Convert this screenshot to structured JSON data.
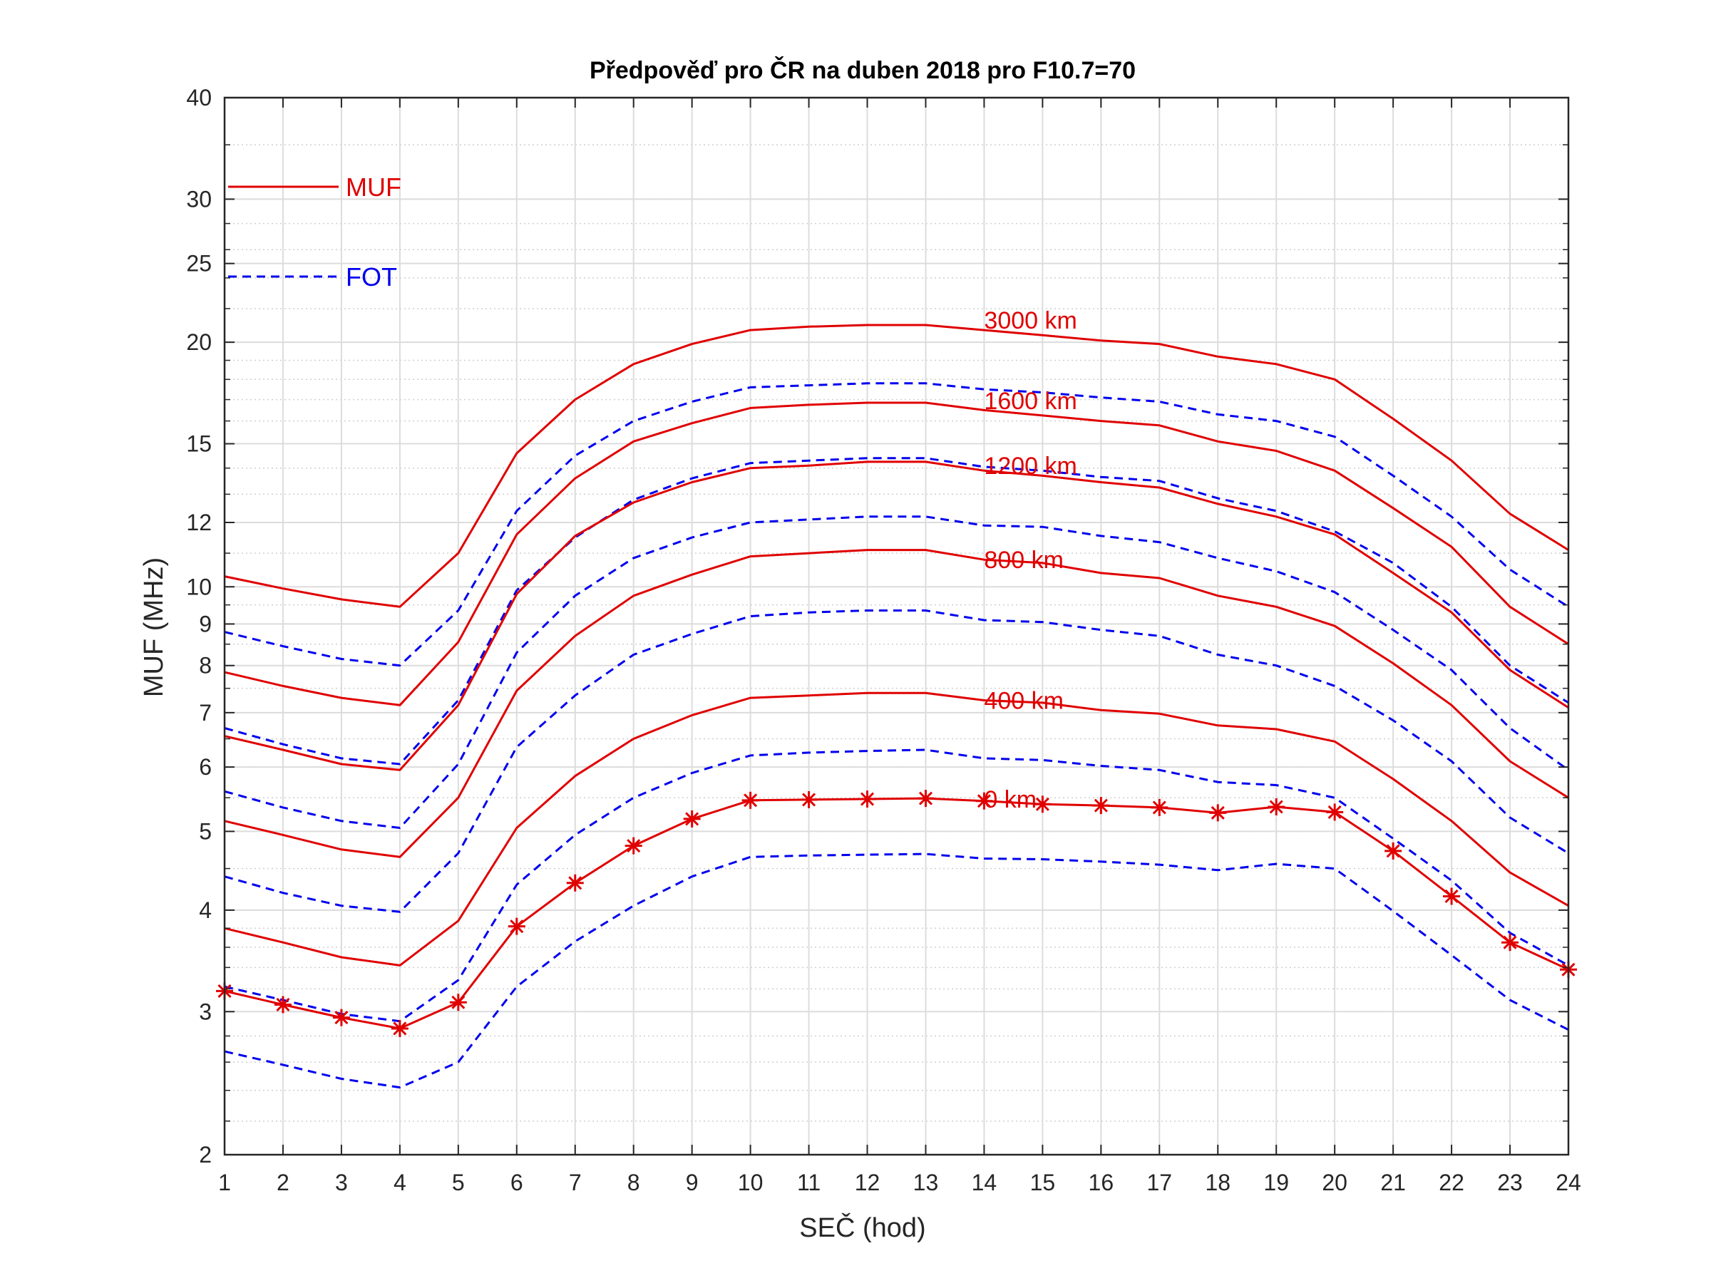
{
  "chart_data": {
    "type": "line",
    "title": "Předpověď pro ČR na duben 2018 pro F10.7=70",
    "xlabel": "SEČ (hod)",
    "ylabel": "MUF (MHz)",
    "xlim": [
      1,
      24
    ],
    "ylim": [
      2,
      40
    ],
    "yscale": "log",
    "grid": true,
    "x": [
      1,
      2,
      3,
      4,
      5,
      6,
      7,
      8,
      9,
      10,
      11,
      12,
      13,
      14,
      15,
      16,
      17,
      18,
      19,
      20,
      21,
      22,
      23,
      24
    ],
    "x_ticks": [
      "1",
      "2",
      "3",
      "4",
      "5",
      "6",
      "7",
      "8",
      "9",
      "10",
      "11",
      "12",
      "13",
      "14",
      "15",
      "16",
      "17",
      "18",
      "19",
      "20",
      "21",
      "22",
      "23",
      "24"
    ],
    "y_ticks": [
      2,
      3,
      4,
      5,
      6,
      7,
      8,
      9,
      10,
      12,
      15,
      20,
      25,
      30,
      40
    ],
    "y_tick_labels": [
      "2",
      "3",
      "4",
      "5",
      "6",
      "7",
      "8",
      "9",
      "10",
      "12",
      "15",
      "20",
      "25",
      "30",
      "40"
    ],
    "legend": [
      {
        "label": "MUF",
        "color": "#e00000",
        "style": "solid"
      },
      {
        "label": "FOT",
        "color": "#0000ee",
        "style": "dashed"
      }
    ],
    "series": [
      {
        "type": "MUF",
        "distance_label": "3000 km",
        "label_at": [
          14.0,
          21.3
        ],
        "color": "#e00000",
        "style": "solid",
        "values": [
          10.3,
          9.95,
          9.65,
          9.45,
          11.0,
          14.6,
          17.0,
          18.8,
          19.9,
          20.7,
          20.9,
          21.0,
          21.0,
          20.7,
          20.4,
          20.1,
          19.9,
          19.2,
          18.8,
          18.0,
          16.1,
          14.3,
          12.3,
          11.1
        ]
      },
      {
        "type": "FOT",
        "color": "#0000ee",
        "style": "dashed",
        "values": [
          8.8,
          8.45,
          8.15,
          8.0,
          9.35,
          12.4,
          14.5,
          16.0,
          16.9,
          17.6,
          17.7,
          17.8,
          17.8,
          17.5,
          17.35,
          17.1,
          16.9,
          16.3,
          16.0,
          15.3,
          13.7,
          12.2,
          10.5,
          9.45
        ]
      },
      {
        "type": "MUF",
        "distance_label": "1600 km",
        "label_at": [
          14.0,
          16.95
        ],
        "color": "#e00000",
        "style": "solid",
        "values": [
          7.85,
          7.55,
          7.3,
          7.15,
          8.55,
          11.6,
          13.6,
          15.1,
          15.9,
          16.6,
          16.75,
          16.85,
          16.85,
          16.5,
          16.25,
          16.0,
          15.8,
          15.1,
          14.7,
          13.9,
          12.5,
          11.2,
          9.45,
          8.5
        ]
      },
      {
        "type": "FOT",
        "color": "#0000ee",
        "style": "dashed",
        "values": [
          6.7,
          6.4,
          6.15,
          6.05,
          7.25,
          9.9,
          11.5,
          12.8,
          13.6,
          14.2,
          14.3,
          14.4,
          14.4,
          14.05,
          13.9,
          13.65,
          13.5,
          12.85,
          12.4,
          11.7,
          10.7,
          9.45,
          8.0,
          7.2
        ]
      },
      {
        "type": "MUF",
        "distance_label": "1200 km",
        "label_at": [
          14.0,
          14.1
        ],
        "color": "#e00000",
        "style": "solid",
        "values": [
          6.55,
          6.3,
          6.05,
          5.95,
          7.15,
          9.8,
          11.55,
          12.7,
          13.45,
          14.0,
          14.1,
          14.25,
          14.25,
          13.9,
          13.7,
          13.45,
          13.25,
          12.65,
          12.2,
          11.6,
          10.4,
          9.3,
          7.9,
          7.1
        ]
      },
      {
        "type": "FOT",
        "color": "#0000ee",
        "style": "dashed",
        "values": [
          5.6,
          5.35,
          5.15,
          5.05,
          6.05,
          8.3,
          9.75,
          10.85,
          11.5,
          12.0,
          12.1,
          12.2,
          12.2,
          11.9,
          11.85,
          11.55,
          11.35,
          10.85,
          10.45,
          9.85,
          8.85,
          7.9,
          6.7,
          5.95
        ]
      },
      {
        "type": "MUF",
        "distance_label": "800 km",
        "label_at": [
          14.0,
          10.8
        ],
        "color": "#e00000",
        "style": "solid",
        "values": [
          5.15,
          4.95,
          4.75,
          4.65,
          5.5,
          7.45,
          8.7,
          9.75,
          10.35,
          10.9,
          11.0,
          11.1,
          11.1,
          10.8,
          10.7,
          10.4,
          10.25,
          9.75,
          9.45,
          8.95,
          8.05,
          7.15,
          6.1,
          5.5
        ]
      },
      {
        "type": "FOT",
        "color": "#0000ee",
        "style": "dashed",
        "values": [
          4.4,
          4.2,
          4.05,
          3.98,
          4.7,
          6.35,
          7.35,
          8.25,
          8.75,
          9.2,
          9.3,
          9.35,
          9.35,
          9.1,
          9.05,
          8.85,
          8.7,
          8.25,
          8.0,
          7.55,
          6.85,
          6.1,
          5.2,
          4.7
        ]
      },
      {
        "type": "MUF",
        "distance_label": "400 km",
        "label_at": [
          14.0,
          7.25
        ],
        "color": "#e00000",
        "style": "solid",
        "values": [
          3.8,
          3.65,
          3.5,
          3.42,
          3.88,
          5.05,
          5.85,
          6.5,
          6.95,
          7.3,
          7.35,
          7.4,
          7.4,
          7.25,
          7.2,
          7.05,
          6.98,
          6.75,
          6.68,
          6.45,
          5.8,
          5.15,
          4.45,
          4.05
        ]
      },
      {
        "type": "FOT",
        "color": "#0000ee",
        "style": "dashed",
        "values": [
          3.22,
          3.1,
          2.98,
          2.92,
          3.28,
          4.3,
          4.95,
          5.5,
          5.9,
          6.2,
          6.25,
          6.28,
          6.3,
          6.15,
          6.12,
          6.02,
          5.95,
          5.75,
          5.7,
          5.5,
          4.9,
          4.35,
          3.75,
          3.42
        ]
      },
      {
        "type": "MUF",
        "distance_label": "0 km",
        "label_at": [
          14.0,
          5.48
        ],
        "color": "#e00000",
        "style": "solid",
        "marker": "asterisk",
        "values": [
          3.18,
          3.06,
          2.95,
          2.86,
          3.08,
          3.82,
          4.32,
          4.8,
          5.18,
          5.46,
          5.47,
          5.48,
          5.49,
          5.45,
          5.4,
          5.38,
          5.35,
          5.27,
          5.36,
          5.28,
          4.73,
          4.16,
          3.65,
          3.38
        ]
      },
      {
        "type": "FOT",
        "color": "#0000ee",
        "style": "dashed",
        "values": [
          2.68,
          2.58,
          2.48,
          2.42,
          2.6,
          3.22,
          3.66,
          4.05,
          4.4,
          4.65,
          4.67,
          4.68,
          4.69,
          4.63,
          4.62,
          4.59,
          4.55,
          4.48,
          4.56,
          4.5,
          3.99,
          3.52,
          3.1,
          2.85
        ]
      }
    ]
  }
}
